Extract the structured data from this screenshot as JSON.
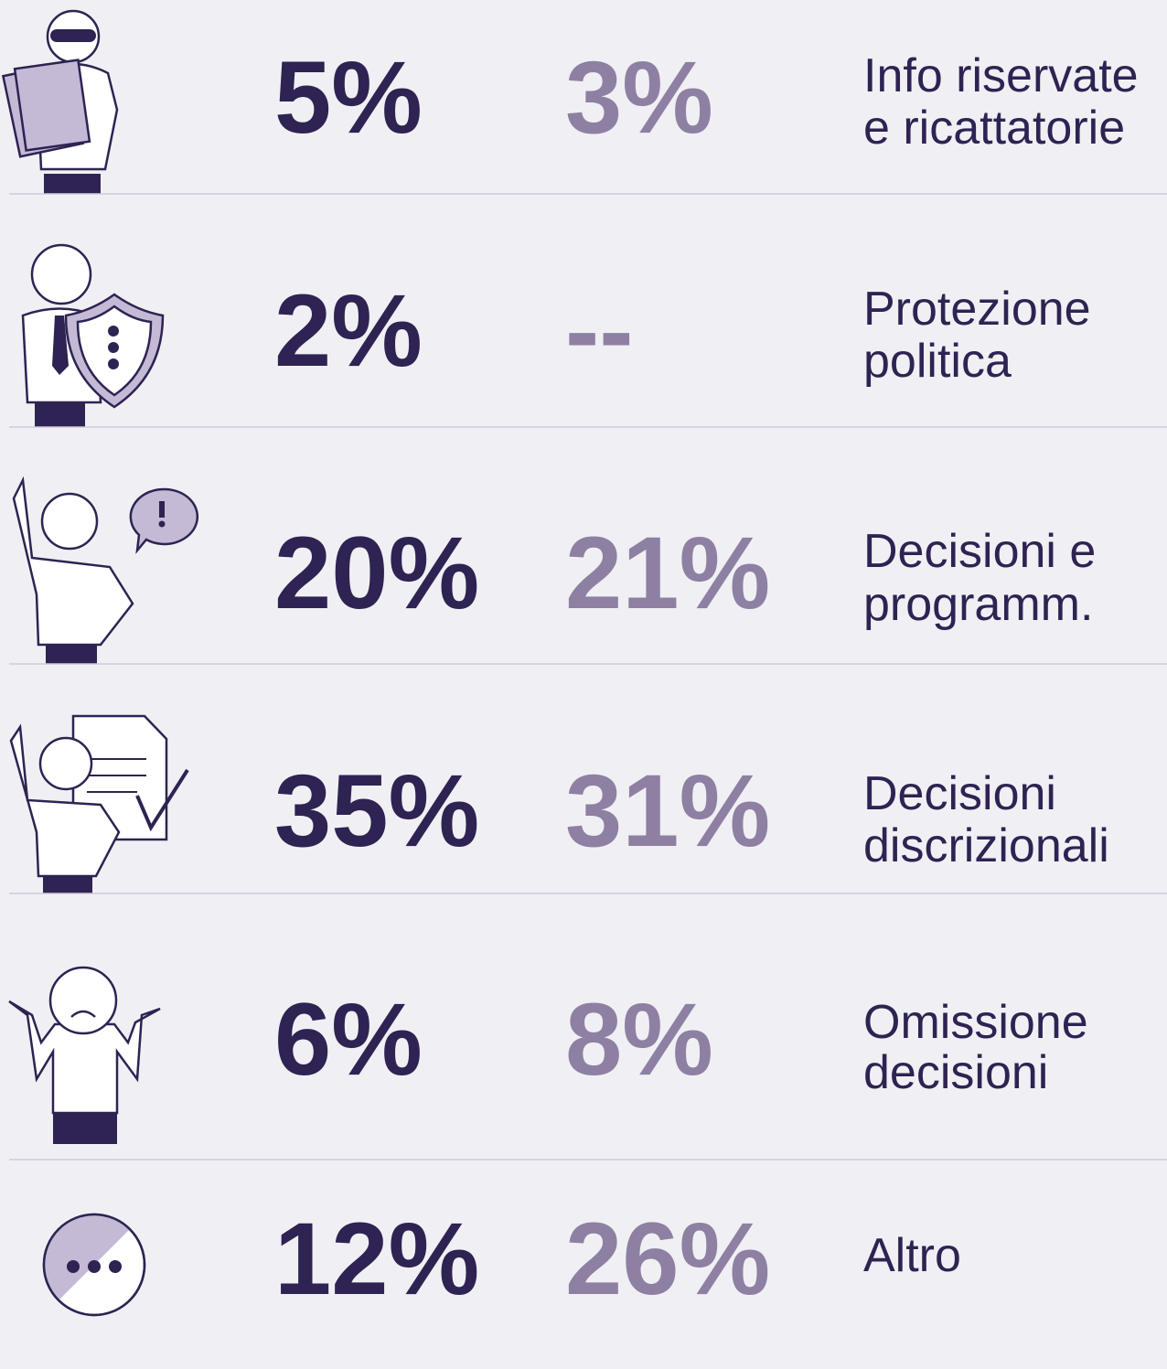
{
  "table": {
    "rows": [
      {
        "value_1": "5%",
        "value_2": "3%",
        "label": [
          "Info riservate",
          "e ricattatorie"
        ]
      },
      {
        "value_1": "2%",
        "value_2": "--",
        "label": [
          "Protezione",
          "politica"
        ]
      },
      {
        "value_1": "20%",
        "value_2": "21%",
        "label": [
          "Decisioni e",
          "programm."
        ]
      },
      {
        "value_1": "35%",
        "value_2": "31%",
        "label": [
          "Decisioni",
          "discrizionali"
        ]
      },
      {
        "value_1": "6%",
        "value_2": "8%",
        "label": [
          "Omissione",
          "decisioni"
        ]
      },
      {
        "value_1": "12%",
        "value_2": "26%",
        "label": [
          "Altro"
        ]
      }
    ]
  }
}
